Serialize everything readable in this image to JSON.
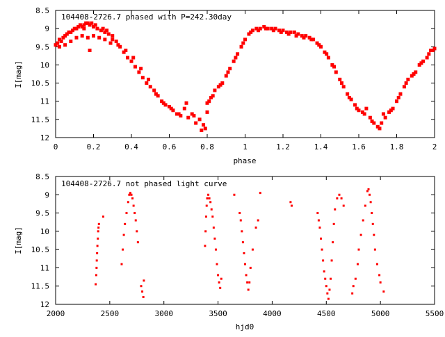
{
  "chart_data": [
    {
      "type": "scatter",
      "title": "104408-2726.7 phased with P=242.30day",
      "xlabel": "phase",
      "ylabel": "I[mag]",
      "xlim": [
        0,
        2
      ],
      "ylim": [
        8.5,
        12
      ],
      "y_inverted": true,
      "xticks": [
        "0",
        "0.2",
        "0.4",
        "0.6",
        "0.8",
        "1",
        "1.2",
        "1.4",
        "1.6",
        "1.8",
        "2"
      ],
      "yticks": [
        "8.5",
        "9",
        "9.5",
        "10",
        "10.5",
        "11",
        "11.5",
        "12"
      ],
      "grid": false,
      "marker_color": "#ff0000",
      "points": [
        [
          0.0,
          9.45
        ],
        [
          0.01,
          9.4
        ],
        [
          0.02,
          9.3
        ],
        [
          0.03,
          9.35
        ],
        [
          0.04,
          9.25
        ],
        [
          0.05,
          9.2
        ],
        [
          0.06,
          9.15
        ],
        [
          0.07,
          9.1
        ],
        [
          0.08,
          9.1
        ],
        [
          0.09,
          9.05
        ],
        [
          0.1,
          9.0
        ],
        [
          0.11,
          9.0
        ],
        [
          0.12,
          8.95
        ],
        [
          0.13,
          8.9
        ],
        [
          0.14,
          8.95
        ],
        [
          0.15,
          8.9
        ],
        [
          0.16,
          8.85
        ],
        [
          0.17,
          8.85
        ],
        [
          0.18,
          8.9
        ],
        [
          0.19,
          8.85
        ],
        [
          0.2,
          8.95
        ],
        [
          0.22,
          9.0
        ],
        [
          0.24,
          9.05
        ],
        [
          0.26,
          9.1
        ],
        [
          0.28,
          9.15
        ],
        [
          0.3,
          9.2
        ],
        [
          0.32,
          9.35
        ],
        [
          0.34,
          9.5
        ],
        [
          0.36,
          9.65
        ],
        [
          0.38,
          9.8
        ],
        [
          0.4,
          9.9
        ],
        [
          0.42,
          10.05
        ],
        [
          0.44,
          10.2
        ],
        [
          0.46,
          10.35
        ],
        [
          0.48,
          10.5
        ],
        [
          0.5,
          10.6
        ],
        [
          0.52,
          10.7
        ],
        [
          0.54,
          10.85
        ],
        [
          0.56,
          11.0
        ],
        [
          0.58,
          11.1
        ],
        [
          0.6,
          11.15
        ],
        [
          0.62,
          11.25
        ],
        [
          0.64,
          11.35
        ],
        [
          0.66,
          11.4
        ],
        [
          0.68,
          11.2
        ],
        [
          0.7,
          11.45
        ],
        [
          0.72,
          11.35
        ],
        [
          0.74,
          11.6
        ],
        [
          0.76,
          11.5
        ],
        [
          0.78,
          11.65
        ],
        [
          0.8,
          11.3
        ],
        [
          0.02,
          9.5
        ],
        [
          0.05,
          9.45
        ],
        [
          0.08,
          9.35
        ],
        [
          0.11,
          9.25
        ],
        [
          0.14,
          9.2
        ],
        [
          0.17,
          9.25
        ],
        [
          0.2,
          9.2
        ],
        [
          0.23,
          9.25
        ],
        [
          0.26,
          9.3
        ],
        [
          0.29,
          9.4
        ],
        [
          0.18,
          9.6
        ],
        [
          0.15,
          9.0
        ],
        [
          0.21,
          8.9
        ],
        [
          0.25,
          9.0
        ],
        [
          0.27,
          9.05
        ],
        [
          0.3,
          9.3
        ],
        [
          0.33,
          9.45
        ],
        [
          0.37,
          9.6
        ],
        [
          0.41,
          9.8
        ],
        [
          0.45,
          10.1
        ],
        [
          0.49,
          10.4
        ],
        [
          0.53,
          10.8
        ],
        [
          0.57,
          11.05
        ],
        [
          0.61,
          11.2
        ],
        [
          0.65,
          11.35
        ],
        [
          0.69,
          11.05
        ],
        [
          0.73,
          11.4
        ],
        [
          0.77,
          11.8
        ],
        [
          0.79,
          11.75
        ],
        [
          0.8,
          11.05
        ],
        [
          0.81,
          11.0
        ],
        [
          0.82,
          10.9
        ],
        [
          0.84,
          10.7
        ],
        [
          0.86,
          10.6
        ],
        [
          0.88,
          10.5
        ],
        [
          0.9,
          10.3
        ],
        [
          0.92,
          10.1
        ],
        [
          0.94,
          9.9
        ],
        [
          0.96,
          9.7
        ],
        [
          0.98,
          9.5
        ],
        [
          1.0,
          9.3
        ],
        [
          1.02,
          9.15
        ],
        [
          1.04,
          9.05
        ],
        [
          1.06,
          9.0
        ],
        [
          1.08,
          9.0
        ],
        [
          1.1,
          8.95
        ],
        [
          1.12,
          9.0
        ],
        [
          1.14,
          9.0
        ],
        [
          1.16,
          9.0
        ],
        [
          1.18,
          9.05
        ],
        [
          1.2,
          9.05
        ],
        [
          1.22,
          9.1
        ],
        [
          1.24,
          9.1
        ],
        [
          1.26,
          9.1
        ],
        [
          1.28,
          9.15
        ],
        [
          1.3,
          9.2
        ],
        [
          1.32,
          9.2
        ],
        [
          1.34,
          9.25
        ],
        [
          1.36,
          9.3
        ],
        [
          1.38,
          9.4
        ],
        [
          1.4,
          9.5
        ],
        [
          1.42,
          9.65
        ],
        [
          1.44,
          9.8
        ],
        [
          1.46,
          10.0
        ],
        [
          1.48,
          10.2
        ],
        [
          1.5,
          10.4
        ],
        [
          1.52,
          10.6
        ],
        [
          1.54,
          10.8
        ],
        [
          1.56,
          10.95
        ],
        [
          1.58,
          11.1
        ],
        [
          1.6,
          11.25
        ],
        [
          1.62,
          11.3
        ],
        [
          1.64,
          11.2
        ],
        [
          1.66,
          11.45
        ],
        [
          1.68,
          11.6
        ],
        [
          1.7,
          11.7
        ],
        [
          1.72,
          11.6
        ],
        [
          1.74,
          11.45
        ],
        [
          1.76,
          11.3
        ],
        [
          1.78,
          11.2
        ],
        [
          1.8,
          11.0
        ],
        [
          1.82,
          10.8
        ],
        [
          1.84,
          10.6
        ],
        [
          1.86,
          10.4
        ],
        [
          1.88,
          10.3
        ],
        [
          1.9,
          10.2
        ],
        [
          1.92,
          10.0
        ],
        [
          1.94,
          9.9
        ],
        [
          1.96,
          9.8
        ],
        [
          1.98,
          9.6
        ],
        [
          2.0,
          9.55
        ],
        [
          0.83,
          10.85
        ],
        [
          0.87,
          10.55
        ],
        [
          0.91,
          10.2
        ],
        [
          0.95,
          9.8
        ],
        [
          0.99,
          9.4
        ],
        [
          1.03,
          9.1
        ],
        [
          1.07,
          9.05
        ],
        [
          1.11,
          9.0
        ],
        [
          1.15,
          9.05
        ],
        [
          1.19,
          9.1
        ],
        [
          1.23,
          9.15
        ],
        [
          1.27,
          9.2
        ],
        [
          1.31,
          9.25
        ],
        [
          1.35,
          9.3
        ],
        [
          1.39,
          9.45
        ],
        [
          1.43,
          9.7
        ],
        [
          1.47,
          10.05
        ],
        [
          1.51,
          10.5
        ],
        [
          1.55,
          10.9
        ],
        [
          1.59,
          11.2
        ],
        [
          1.63,
          11.35
        ],
        [
          1.67,
          11.55
        ],
        [
          1.71,
          11.75
        ],
        [
          1.73,
          11.35
        ],
        [
          1.77,
          11.25
        ],
        [
          1.81,
          10.9
        ],
        [
          1.85,
          10.5
        ],
        [
          1.89,
          10.25
        ],
        [
          1.93,
          9.95
        ],
        [
          1.97,
          9.7
        ],
        [
          1.99,
          9.6
        ]
      ]
    },
    {
      "type": "scatter",
      "title": "104408-2726.7 not phased light curve",
      "xlabel": "hjd0",
      "ylabel": "I[mag]",
      "xlim": [
        2000,
        5500
      ],
      "ylim": [
        8.5,
        12
      ],
      "y_inverted": true,
      "xticks": [
        "2000",
        "2500",
        "3000",
        "3500",
        "4000",
        "4500",
        "5000",
        "5500"
      ],
      "yticks": [
        "8.5",
        "9",
        "9.5",
        "10",
        "10.5",
        "11",
        "11.5",
        "12"
      ],
      "grid": false,
      "marker_color": "#ff0000",
      "points": [
        [
          2370,
          11.45
        ],
        [
          2375,
          11.2
        ],
        [
          2378,
          11.0
        ],
        [
          2380,
          10.8
        ],
        [
          2383,
          10.6
        ],
        [
          2386,
          10.4
        ],
        [
          2390,
          10.2
        ],
        [
          2393,
          10.0
        ],
        [
          2396,
          9.9
        ],
        [
          2400,
          9.8
        ],
        [
          2440,
          9.6
        ],
        [
          2610,
          10.9
        ],
        [
          2620,
          10.5
        ],
        [
          2630,
          10.1
        ],
        [
          2640,
          9.8
        ],
        [
          2655,
          9.5
        ],
        [
          2670,
          9.2
        ],
        [
          2680,
          9.0
        ],
        [
          2690,
          8.95
        ],
        [
          2700,
          9.0
        ],
        [
          2710,
          9.1
        ],
        [
          2720,
          9.3
        ],
        [
          2730,
          9.5
        ],
        [
          2740,
          9.7
        ],
        [
          2750,
          10.0
        ],
        [
          2760,
          10.3
        ],
        [
          2790,
          11.5
        ],
        [
          2800,
          11.65
        ],
        [
          2810,
          11.8
        ],
        [
          2815,
          11.35
        ],
        [
          3380,
          10.4
        ],
        [
          3385,
          10.0
        ],
        [
          3390,
          9.6
        ],
        [
          3395,
          9.3
        ],
        [
          3400,
          9.1
        ],
        [
          3410,
          9.0
        ],
        [
          3420,
          9.1
        ],
        [
          3430,
          9.2
        ],
        [
          3440,
          9.4
        ],
        [
          3450,
          9.6
        ],
        [
          3460,
          9.9
        ],
        [
          3470,
          10.2
        ],
        [
          3480,
          10.5
        ],
        [
          3490,
          10.9
        ],
        [
          3500,
          11.2
        ],
        [
          3510,
          11.4
        ],
        [
          3520,
          11.55
        ],
        [
          3530,
          11.3
        ],
        [
          3650,
          9.0
        ],
        [
          3700,
          9.5
        ],
        [
          3710,
          9.7
        ],
        [
          3720,
          10.0
        ],
        [
          3730,
          10.3
        ],
        [
          3740,
          10.6
        ],
        [
          3750,
          10.9
        ],
        [
          3760,
          11.2
        ],
        [
          3770,
          11.4
        ],
        [
          3780,
          11.6
        ],
        [
          3790,
          11.4
        ],
        [
          3800,
          11.0
        ],
        [
          3820,
          10.5
        ],
        [
          3850,
          9.9
        ],
        [
          3870,
          9.7
        ],
        [
          3890,
          8.95
        ],
        [
          4170,
          9.2
        ],
        [
          4180,
          9.3
        ],
        [
          4420,
          9.5
        ],
        [
          4430,
          9.7
        ],
        [
          4440,
          9.9
        ],
        [
          4450,
          10.2
        ],
        [
          4460,
          10.5
        ],
        [
          4470,
          10.8
        ],
        [
          4480,
          11.1
        ],
        [
          4490,
          11.3
        ],
        [
          4500,
          11.5
        ],
        [
          4510,
          11.7
        ],
        [
          4520,
          11.85
        ],
        [
          4530,
          11.6
        ],
        [
          4540,
          11.3
        ],
        [
          4550,
          10.8
        ],
        [
          4560,
          10.3
        ],
        [
          4570,
          9.8
        ],
        [
          4580,
          9.4
        ],
        [
          4600,
          9.1
        ],
        [
          4620,
          9.0
        ],
        [
          4640,
          9.1
        ],
        [
          4660,
          9.3
        ],
        [
          4740,
          11.7
        ],
        [
          4750,
          11.5
        ],
        [
          4770,
          11.3
        ],
        [
          4790,
          10.9
        ],
        [
          4800,
          10.5
        ],
        [
          4820,
          10.1
        ],
        [
          4840,
          9.7
        ],
        [
          4860,
          9.3
        ],
        [
          4880,
          8.9
        ],
        [
          4890,
          8.85
        ],
        [
          4900,
          9.0
        ],
        [
          4910,
          9.2
        ],
        [
          4920,
          9.5
        ],
        [
          4930,
          9.8
        ],
        [
          4940,
          10.1
        ],
        [
          4950,
          10.5
        ],
        [
          4970,
          10.9
        ],
        [
          4990,
          11.2
        ],
        [
          5000,
          11.4
        ],
        [
          5030,
          11.65
        ]
      ]
    }
  ]
}
